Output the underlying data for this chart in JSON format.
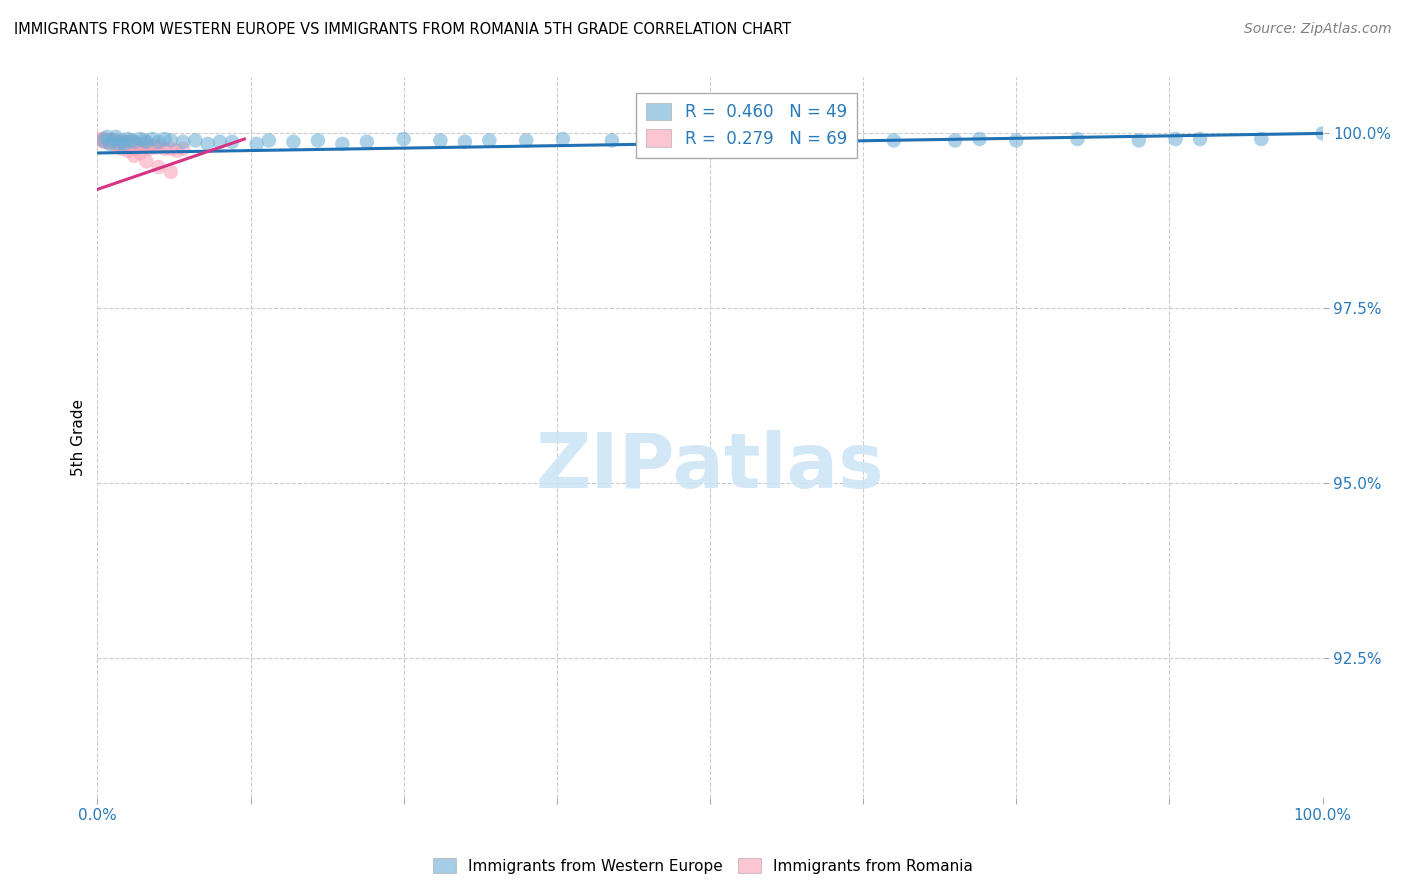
{
  "title": "IMMIGRANTS FROM WESTERN EUROPE VS IMMIGRANTS FROM ROMANIA 5TH GRADE CORRELATION CHART",
  "source": "Source: ZipAtlas.com",
  "ylabel": "5th Grade",
  "yaxis_labels": [
    "100.0%",
    "97.5%",
    "95.0%",
    "92.5%"
  ],
  "yaxis_values": [
    1.0,
    0.975,
    0.95,
    0.925
  ],
  "legend_blue_label": "Immigrants from Western Europe",
  "legend_pink_label": "Immigrants from Romania",
  "R_blue": 0.46,
  "N_blue": 49,
  "R_pink": 0.279,
  "N_pink": 69,
  "blue_color": "#6baed6",
  "pink_color": "#fa9fb5",
  "trendline_blue": "#2171b5",
  "trendline_pink": "#d63384",
  "xlim": [
    0.0,
    1.0
  ],
  "ylim": [
    0.905,
    1.008
  ],
  "blue_scatter_x": [
    0.005,
    0.008,
    0.01,
    0.012,
    0.015,
    0.018,
    0.02,
    0.022,
    0.025,
    0.028,
    0.03,
    0.035,
    0.038,
    0.04,
    0.045,
    0.05,
    0.055,
    0.06,
    0.07,
    0.08,
    0.09,
    0.1,
    0.11,
    0.13,
    0.14,
    0.16,
    0.18,
    0.2,
    0.22,
    0.25,
    0.28,
    0.3,
    0.32,
    0.35,
    0.38,
    0.42,
    0.48,
    0.55,
    0.6,
    0.65,
    0.7,
    0.72,
    0.75,
    0.8,
    0.85,
    0.88,
    0.9,
    0.95,
    1.0
  ],
  "blue_scatter_y": [
    0.999,
    0.9995,
    0.9985,
    0.999,
    0.9995,
    0.9985,
    0.999,
    0.9985,
    0.9992,
    0.999,
    0.9988,
    0.9992,
    0.999,
    0.9988,
    0.9992,
    0.9988,
    0.9992,
    0.999,
    0.9988,
    0.999,
    0.9985,
    0.9988,
    0.9988,
    0.9985,
    0.999,
    0.9988,
    0.999,
    0.9985,
    0.9988,
    0.9992,
    0.999,
    0.9988,
    0.999,
    0.999,
    0.9992,
    0.999,
    0.9992,
    0.999,
    0.9992,
    0.999,
    0.999,
    0.9992,
    0.999,
    0.9992,
    0.999,
    0.9992,
    0.9992,
    0.9992,
    1.0
  ],
  "pink_scatter_x": [
    0.003,
    0.004,
    0.005,
    0.006,
    0.007,
    0.008,
    0.009,
    0.01,
    0.011,
    0.012,
    0.013,
    0.014,
    0.015,
    0.016,
    0.017,
    0.018,
    0.019,
    0.02,
    0.021,
    0.022,
    0.023,
    0.024,
    0.025,
    0.026,
    0.027,
    0.028,
    0.03,
    0.032,
    0.035,
    0.038,
    0.04,
    0.042,
    0.045,
    0.048,
    0.05,
    0.055,
    0.06,
    0.065,
    0.07,
    0.005,
    0.006,
    0.007,
    0.008,
    0.009,
    0.01,
    0.011,
    0.012,
    0.013,
    0.014,
    0.015,
    0.016,
    0.017,
    0.018,
    0.019,
    0.02,
    0.022,
    0.024,
    0.026,
    0.015,
    0.02,
    0.025,
    0.03,
    0.02,
    0.025,
    0.035,
    0.03,
    0.04,
    0.05,
    0.06
  ],
  "pink_scatter_y": [
    0.9992,
    0.999,
    0.9988,
    0.9992,
    0.999,
    0.9988,
    0.999,
    0.9988,
    0.999,
    0.9988,
    0.999,
    0.9988,
    0.9985,
    0.9988,
    0.9985,
    0.9988,
    0.9985,
    0.9988,
    0.9985,
    0.9985,
    0.9988,
    0.9985,
    0.9985,
    0.9988,
    0.9985,
    0.9988,
    0.9982,
    0.9985,
    0.9985,
    0.9982,
    0.998,
    0.9978,
    0.9982,
    0.998,
    0.9982,
    0.9978,
    0.9978,
    0.9975,
    0.9978,
    0.9992,
    0.999,
    0.999,
    0.9988,
    0.999,
    0.9988,
    0.999,
    0.9988,
    0.999,
    0.9988,
    0.9985,
    0.9988,
    0.9985,
    0.9988,
    0.9985,
    0.9985,
    0.9985,
    0.9985,
    0.9985,
    0.9982,
    0.9982,
    0.998,
    0.9978,
    0.9978,
    0.9975,
    0.9972,
    0.9968,
    0.996,
    0.9952,
    0.9945
  ],
  "blue_trend_x": [
    0.0,
    1.0
  ],
  "blue_trend_y": [
    0.9972,
    1.0
  ],
  "pink_trend_x": [
    0.0,
    0.12
  ],
  "pink_trend_y": [
    0.992,
    0.9992
  ],
  "xticks": [
    0.0,
    0.125,
    0.25,
    0.375,
    0.5,
    0.625,
    0.75,
    0.875,
    1.0
  ],
  "xtick_labels": [
    "0.0%",
    "",
    "",
    "",
    "",
    "",
    "",
    "",
    "100.0%"
  ]
}
